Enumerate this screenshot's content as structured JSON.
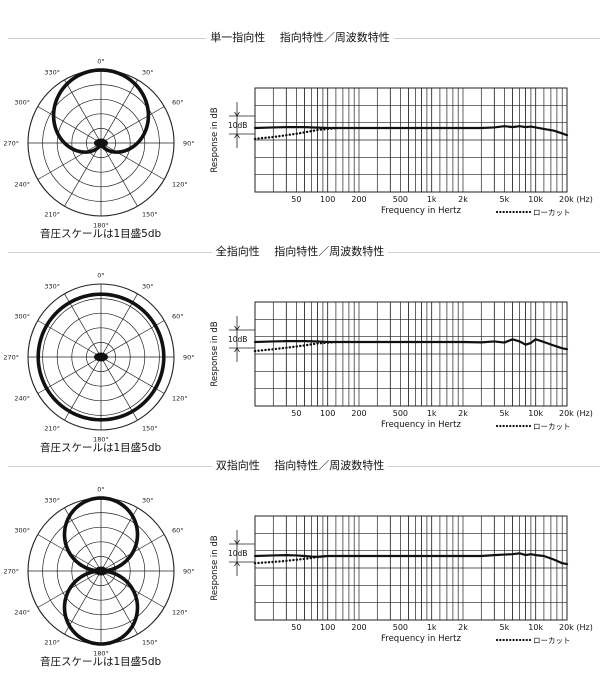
{
  "chart_data": [
    {
      "type": "polar",
      "title": "単一指向性　 指向特性／周波数特性",
      "pattern": "cardioid",
      "angle_labels": [
        "0°",
        "30°",
        "60°",
        "90°",
        "120°",
        "150°",
        "180°",
        "210°",
        "240°",
        "270°",
        "300°",
        "330°"
      ],
      "caption": "音圧スケールは1目盛5db",
      "frequency_response": {
        "type": "line",
        "xlabel": "Frequency in Hertz",
        "ylabel": "Response in dB",
        "scale_label": "10dB",
        "xscale": "log",
        "xlim": [
          20,
          20000
        ],
        "tick_labels": [
          {
            "f": 50,
            "label": "50"
          },
          {
            "f": 100,
            "label": "100"
          },
          {
            "f": 200,
            "label": "200"
          },
          {
            "f": 500,
            "label": "500"
          },
          {
            "f": 1000,
            "label": "1k"
          },
          {
            "f": 2000,
            "label": "2k"
          },
          {
            "f": 5000,
            "label": "5k"
          },
          {
            "f": 10000,
            "label": "10k"
          },
          {
            "f": 20000,
            "label": "20k (Hz)"
          }
        ],
        "legend": "ローカット",
        "series": [
          {
            "style": "solid",
            "x": [
              20,
              30,
              40,
              60,
              80,
              100,
              200,
              500,
              1000,
              2000,
              3000,
              4000,
              5000,
              6000,
              7000,
              8000,
              9000,
              10000,
              12000,
              15000,
              18000,
              20000
            ],
            "y": [
              0,
              0.3,
              0.5,
              0.5,
              0.2,
              0,
              0,
              0,
              0,
              0,
              0,
              0.3,
              1,
              0.5,
              1,
              0.5,
              0.8,
              0.3,
              -0.5,
              -1.5,
              -3,
              -4
            ]
          },
          {
            "style": "dotted",
            "x": [
              20,
              30,
              40,
              50,
              60,
              70,
              80,
              100,
              120
            ],
            "y": [
              -6,
              -5,
              -4,
              -3.2,
              -2.4,
              -1.7,
              -1.1,
              -0.5,
              0
            ]
          }
        ]
      }
    },
    {
      "type": "polar",
      "title": "全指向性　 指向特性／周波数特性",
      "pattern": "omni",
      "angle_labels": [
        "0°",
        "30°",
        "60°",
        "90°",
        "120°",
        "150°",
        "180°",
        "210°",
        "240°",
        "270°",
        "300°",
        "330°"
      ],
      "caption": "音圧スケールは1目盛5db",
      "frequency_response": {
        "type": "line",
        "xlabel": "Frequency in Hertz",
        "ylabel": "Response in dB",
        "scale_label": "10dB",
        "xscale": "log",
        "xlim": [
          20,
          20000
        ],
        "tick_labels": [
          {
            "f": 50,
            "label": "50"
          },
          {
            "f": 100,
            "label": "100"
          },
          {
            "f": 200,
            "label": "200"
          },
          {
            "f": 500,
            "label": "500"
          },
          {
            "f": 1000,
            "label": "1k"
          },
          {
            "f": 2000,
            "label": "2k"
          },
          {
            "f": 5000,
            "label": "5k"
          },
          {
            "f": 10000,
            "label": "10k"
          },
          {
            "f": 20000,
            "label": "20k (Hz)"
          }
        ],
        "legend": "ローカット",
        "series": [
          {
            "style": "solid",
            "x": [
              20,
              30,
              40,
              60,
              80,
              100,
              200,
              500,
              1000,
              2000,
              3000,
              4000,
              5000,
              6000,
              7000,
              8000,
              9000,
              10000,
              12000,
              15000,
              18000,
              20000
            ],
            "y": [
              0,
              0.3,
              0.5,
              0.5,
              0.3,
              0,
              0,
              0,
              0,
              0,
              -0.2,
              0.3,
              -0.3,
              1.5,
              0.3,
              -1.5,
              -0.5,
              1.5,
              0,
              -2,
              -3.5,
              -4
            ]
          },
          {
            "style": "dotted",
            "x": [
              20,
              30,
              40,
              50,
              60,
              70,
              80,
              100,
              120
            ],
            "y": [
              -5,
              -4,
              -3.2,
              -2.5,
              -1.9,
              -1.3,
              -0.8,
              -0.3,
              0
            ]
          }
        ]
      }
    },
    {
      "type": "polar",
      "title": "双指向性　 指向特性／周波数特性",
      "pattern": "figure8",
      "angle_labels": [
        "0°",
        "30°",
        "60°",
        "90°",
        "120°",
        "150°",
        "180°",
        "210°",
        "240°",
        "270°",
        "300°",
        "330°"
      ],
      "caption": "音圧スケールは1目盛5db",
      "frequency_response": {
        "type": "line",
        "xlabel": "Frequency in Hertz",
        "ylabel": "Response in dB",
        "scale_label": "10dB",
        "xscale": "log",
        "xlim": [
          20,
          20000
        ],
        "tick_labels": [
          {
            "f": 50,
            "label": "50"
          },
          {
            "f": 100,
            "label": "100"
          },
          {
            "f": 200,
            "label": "200"
          },
          {
            "f": 500,
            "label": "500"
          },
          {
            "f": 1000,
            "label": "1k"
          },
          {
            "f": 2000,
            "label": "2k"
          },
          {
            "f": 5000,
            "label": "5k"
          },
          {
            "f": 10000,
            "label": "10k"
          },
          {
            "f": 20000,
            "label": "20k (Hz)"
          }
        ],
        "legend": "ローカット",
        "series": [
          {
            "style": "solid",
            "x": [
              20,
              30,
              40,
              50,
              60,
              70,
              80,
              100,
              200,
              500,
              1000,
              2000,
              3000,
              4000,
              5000,
              6000,
              7000,
              8000,
              9000,
              10000,
              12000,
              15000,
              18000,
              20000
            ],
            "y": [
              0,
              0.3,
              0.5,
              0.3,
              0,
              -0.3,
              -0.4,
              0,
              0,
              0,
              0,
              0,
              0,
              0.5,
              0.8,
              1,
              1.5,
              0.5,
              1,
              0.5,
              0,
              -2,
              -4,
              -4.5
            ]
          },
          {
            "style": "dotted",
            "x": [
              20,
              30,
              40,
              50,
              60,
              70,
              80,
              100
            ],
            "y": [
              -4,
              -3.3,
              -2.7,
              -2.1,
              -1.6,
              -1.1,
              -0.6,
              0
            ]
          }
        ]
      }
    }
  ]
}
